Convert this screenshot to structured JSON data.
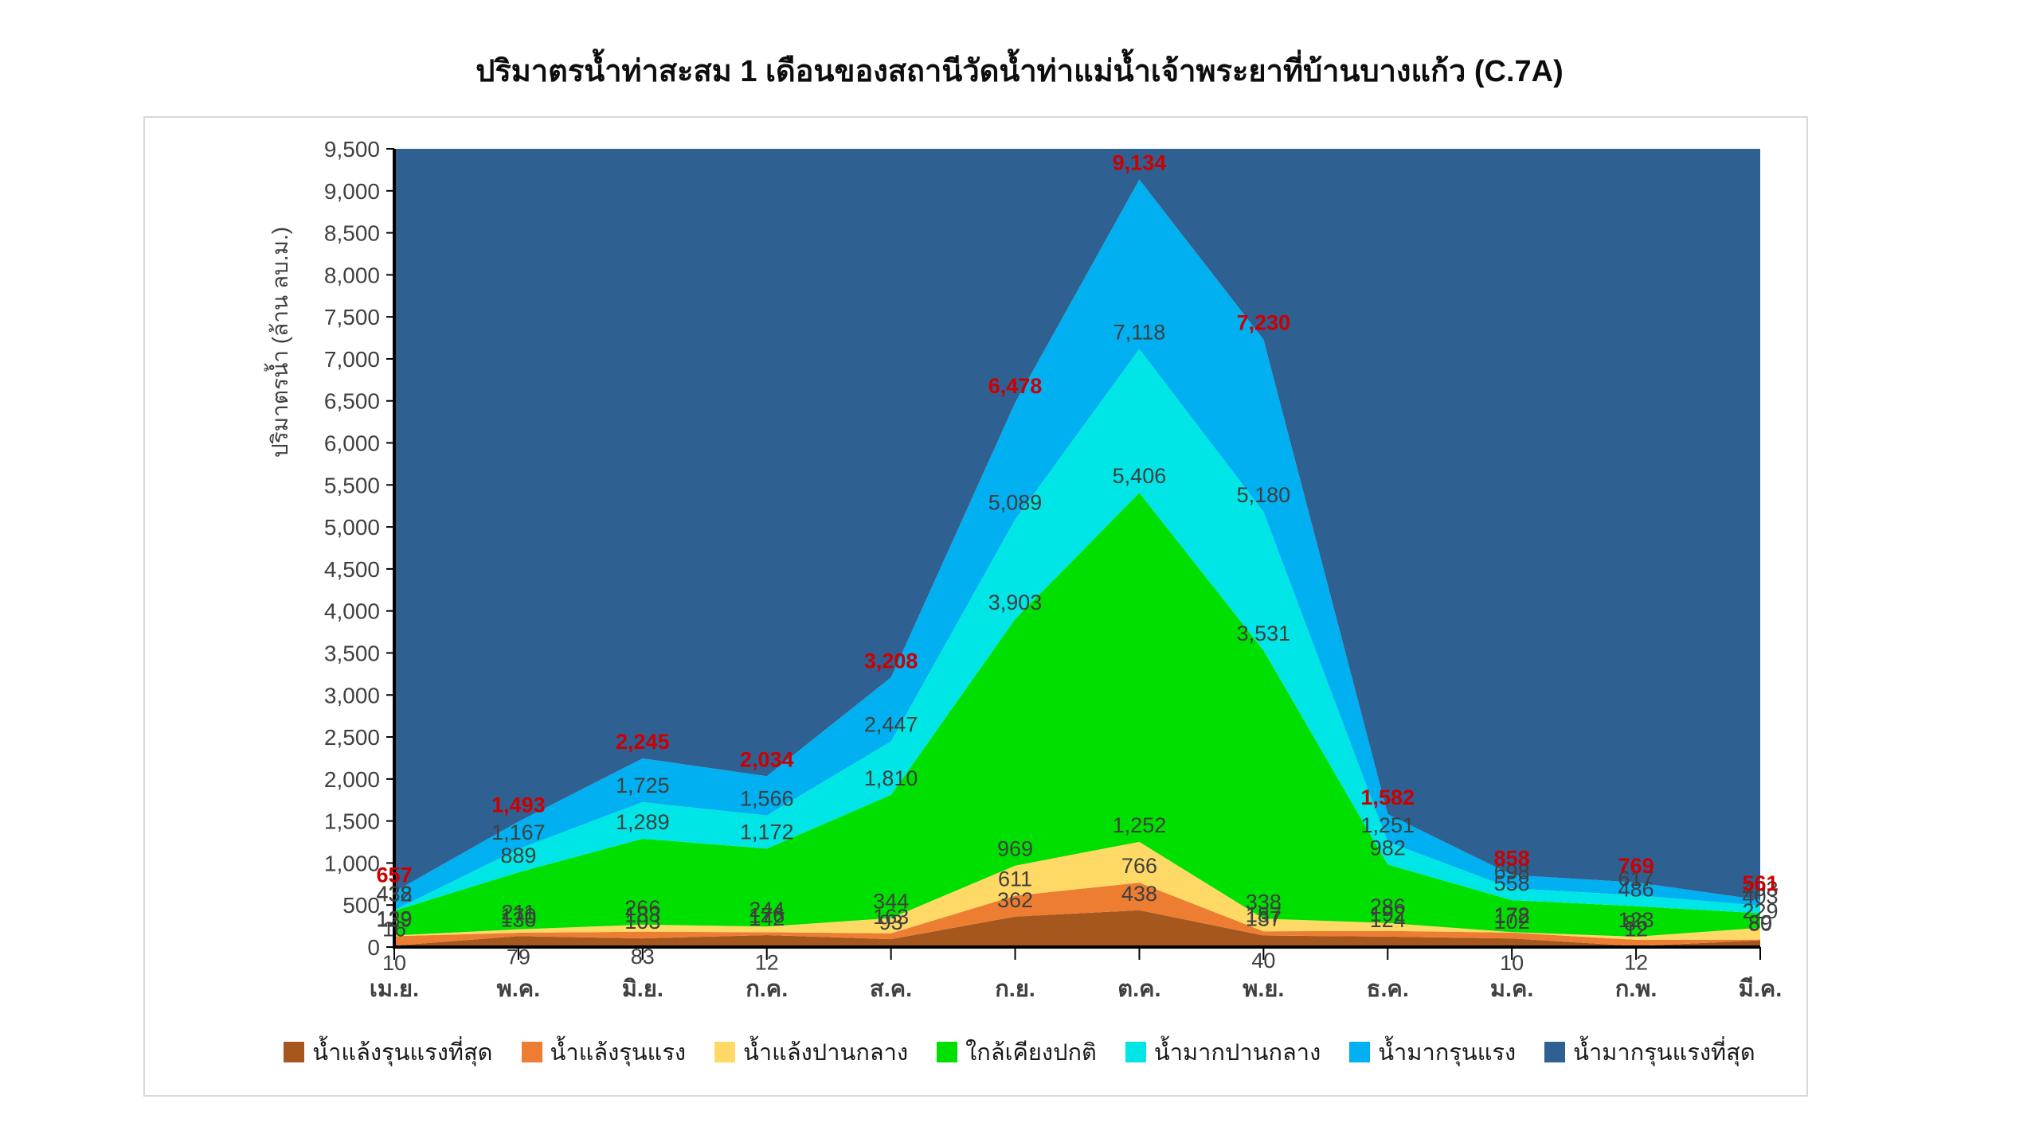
{
  "title": "ปริมาตรน้ำท่าสะสม 1 เดือนของสถานีวัดน้ำท่าแม่น้ำเจ้าพระยาที่บ้านบางแก้ว (C.7A)",
  "y_axis_title": "ปริมาตรน้ำ (ล้าน ลบ.ม.)",
  "colors": {
    "red_label": "#cc0000",
    "black_label": "#3f3f3f",
    "axis": "#000000",
    "tick_text": "#404040",
    "card_border": "#d9d9d9"
  },
  "chart_data": {
    "type": "area",
    "title": "ปริมาตรน้ำท่าสะสม 1 เดือนของสถานีวัดน้ำท่าแม่น้ำเจ้าพระยาที่บ้านบางแก้ว (C.7A)",
    "xlabel": "",
    "ylabel": "ปริมาตรน้ำ (ล้าน ลบ.ม.)",
    "ylim": [
      0,
      9500
    ],
    "ytick_step": 500,
    "grid": false,
    "legend_position": "bottom",
    "categories": [
      "เม.ย.",
      "พ.ค.",
      "มิ.ย.",
      "ก.ค.",
      "ส.ค.",
      "ก.ย.",
      "ต.ค.",
      "พ.ย.",
      "ธ.ค.",
      "ม.ค.",
      "ก.พ.",
      "มี.ค."
    ],
    "series": [
      {
        "name": "น้ำแล้งรุนแรงที่สุด",
        "color": "#a5571e",
        "label_color": "#3f3f3f",
        "boundary_values": [
          16,
          130,
          103,
          142,
          93,
          362,
          438,
          137,
          124,
          102,
          12,
          80
        ]
      },
      {
        "name": "น้ำแล้งรุนแรง",
        "color": "#ed7d31",
        "label_color": "#3f3f3f",
        "boundary_values": [
          129,
          170,
          183,
          176,
          163,
          611,
          766,
          187,
          192,
          172,
          86,
          89
        ]
      },
      {
        "name": "น้ำแล้งปานกลาง",
        "color": "#ffd965",
        "label_color": "#3f3f3f",
        "boundary_values": [
          139,
          211,
          266,
          244,
          344,
          969,
          1252,
          338,
          286,
          178,
          123,
          229
        ]
      },
      {
        "name": "ใกล้เคียงปกติ",
        "color": "#00e000",
        "label_color": "#3f3f3f",
        "boundary_values": [
          432,
          889,
          1289,
          1172,
          1810,
          3903,
          5406,
          3531,
          982,
          558,
          486,
          403
        ]
      },
      {
        "name": "น้ำมากปานกลาง",
        "color": "#00e5e5",
        "label_color": "#3f3f3f",
        "boundary_values": [
          438,
          1167,
          1725,
          1566,
          2447,
          5089,
          7118,
          5180,
          1251,
          698,
          617,
          493
        ]
      },
      {
        "name": "น้ำมากรุนแรง",
        "color": "#00b0f0",
        "label_color": "#cc0000",
        "boundary_values": [
          657,
          1493,
          2245,
          2034,
          3208,
          6478,
          9134,
          7230,
          1582,
          858,
          769,
          561
        ]
      },
      {
        "name": "น้ำมากรุนแรงที่สุด",
        "color": "#2f6092",
        "label_color": null,
        "boundary_values": null
      }
    ],
    "min_labels": [
      10,
      79,
      83,
      12,
      null,
      null,
      null,
      40,
      null,
      10,
      12,
      null
    ]
  }
}
